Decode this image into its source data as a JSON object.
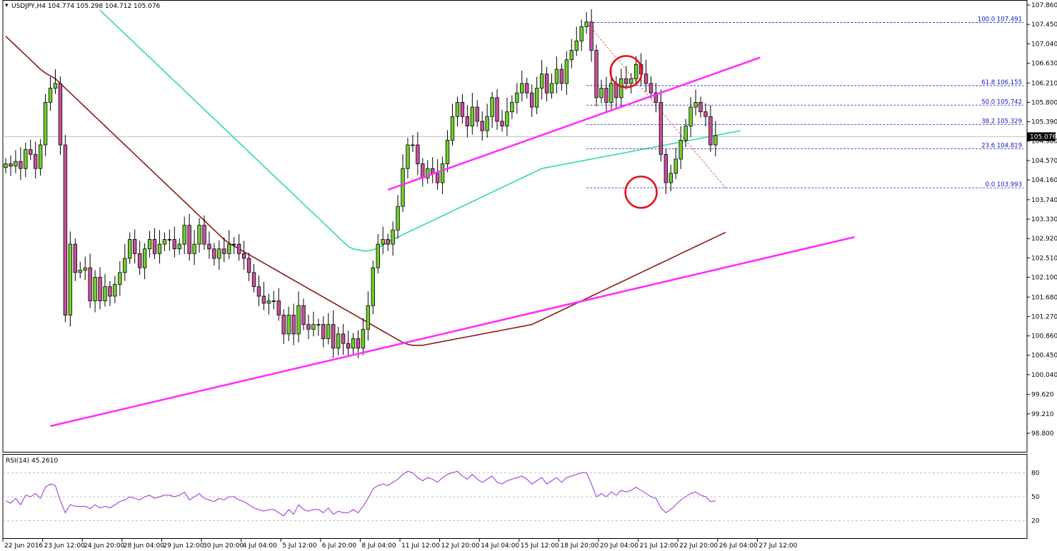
{
  "colors": {
    "background": "#ffffff",
    "frame": "#000000",
    "bull_body": "#6fcf2a",
    "bear_body": "#c8509b",
    "ma_fast": "#30dca0",
    "ma_slow": "#8b1a1a",
    "trendline": "#ff30ff",
    "circle": "#e0141e",
    "fib": "#2020c8",
    "fib_diag": "#e05a5a",
    "rsi": "#9b30d0",
    "current_price_bg": "#000000"
  },
  "chart_data": {
    "type": "candlestick",
    "title": "USDJPY,H4 104.774 105.298 104.712 105.076",
    "symbol": "USDJPY",
    "timeframe": "H4",
    "ohlc_header": {
      "open": 104.774,
      "high": 105.298,
      "low": 104.712,
      "close": 105.076
    },
    "ylim": [
      98.8,
      107.86
    ],
    "y_ticks": [
      107.86,
      107.45,
      107.04,
      106.63,
      106.21,
      105.8,
      105.39,
      104.98,
      104.57,
      104.16,
      103.74,
      103.33,
      102.92,
      102.51,
      102.1,
      101.68,
      101.27,
      100.86,
      100.45,
      100.04,
      99.62,
      99.21,
      98.8
    ],
    "y_tick_labels": [
      "107.860",
      "107.450",
      "107.040",
      "106.630",
      "106.210",
      "105.800",
      "105.390",
      "104.980",
      "104.570",
      "104.160",
      "103.740",
      "103.330",
      "102.920",
      "102.510",
      "102.100",
      "101.680",
      "101.270",
      "100.860",
      "100.450",
      "100.040",
      "99.620",
      "99.210",
      "98.800"
    ],
    "current_price": 105.076,
    "current_price_label": "105.076",
    "x_labels": [
      "22 Jun 2016",
      "23 Jun 12:00",
      "24 Jun 20:00",
      "28 Jun 04:00",
      "29 Jun 12:00",
      "30 Jun 20:00",
      "4 Jul 04:00",
      "5 Jul 12:00",
      "6 Jul 20:00",
      "8 Jul 04:00",
      "11 Jul 12:00",
      "12 Jul 20:00",
      "14 Jul 04:00",
      "15 Jul 12:00",
      "18 Jul 20:00",
      "20 Jul 04:00",
      "21 Jul 12:00",
      "22 Jul 20:00",
      "26 Jul 04:00",
      "27 Jul 12:00"
    ],
    "x_label_index": [
      0,
      8,
      16,
      24,
      32,
      40,
      48,
      56,
      64,
      72,
      80,
      88,
      96,
      104,
      112,
      120,
      128,
      136,
      144,
      152
    ],
    "closes": [
      104.5,
      104.45,
      104.55,
      104.4,
      104.8,
      104.7,
      104.4,
      104.9,
      105.8,
      106.1,
      106.2,
      104.9,
      101.3,
      102.8,
      102.2,
      102.25,
      102.3,
      101.6,
      102.1,
      101.6,
      101.9,
      101.7,
      101.95,
      102.2,
      102.5,
      102.9,
      102.6,
      102.3,
      102.7,
      102.9,
      102.6,
      102.8,
      102.9,
      102.9,
      102.7,
      102.8,
      103.2,
      102.6,
      102.8,
      103.2,
      102.8,
      102.7,
      102.5,
      102.7,
      102.6,
      102.8,
      102.8,
      102.6,
      102.5,
      102.2,
      101.9,
      101.7,
      101.55,
      101.6,
      101.6,
      101.3,
      100.9,
      101.3,
      100.9,
      101.5,
      101.1,
      101.0,
      101.1,
      101.1,
      100.8,
      101.1,
      100.6,
      100.9,
      100.7,
      100.6,
      100.8,
      100.6,
      101.0,
      101.5,
      102.3,
      102.8,
      102.9,
      102.8,
      103.1,
      103.6,
      104.4,
      104.9,
      104.9,
      104.5,
      104.2,
      104.4,
      104.3,
      104.1,
      104.5,
      105.0,
      105.5,
      105.8,
      105.5,
      105.3,
      105.7,
      105.4,
      105.2,
      105.5,
      105.9,
      105.4,
      105.3,
      105.6,
      105.8,
      106.0,
      106.2,
      106.0,
      105.7,
      106.1,
      106.4,
      106.0,
      106.2,
      106.5,
      106.2,
      106.7,
      106.9,
      107.1,
      107.4,
      107.5,
      106.9,
      105.9,
      106.1,
      105.8,
      106.2,
      105.9,
      106.3,
      106.2,
      106.3,
      106.6,
      106.4,
      106.2,
      106.0,
      105.8,
      104.7,
      104.1,
      104.3,
      104.6,
      105.0,
      105.3,
      105.7,
      105.8,
      105.6,
      105.5,
      104.9,
      105.1
    ],
    "series": [
      {
        "name": "Moving Average (fast)",
        "type": "line",
        "values": [
          null,
          null,
          null,
          null,
          null,
          null,
          null,
          null,
          null,
          null,
          null,
          null,
          null,
          null,
          null,
          null,
          null,
          null,
          null,
          107.75,
          107.65,
          107.55,
          107.45,
          107.35,
          107.25,
          107.15,
          107.05,
          106.95,
          106.85,
          106.75,
          106.65,
          106.55,
          106.45,
          106.35,
          106.25,
          106.15,
          106.05,
          105.95,
          105.85,
          105.75,
          105.65,
          105.55,
          105.45,
          105.35,
          105.25,
          105.15,
          105.05,
          104.95,
          104.85,
          104.75,
          104.65,
          104.55,
          104.45,
          104.35,
          104.25,
          104.15,
          104.05,
          103.95,
          103.85,
          103.75,
          103.65,
          103.55,
          103.45,
          103.35,
          103.25,
          103.15,
          103.05,
          102.95,
          102.85,
          102.75,
          102.7,
          102.68,
          102.66,
          102.66,
          102.68,
          102.72,
          102.78,
          102.84,
          102.9,
          102.95,
          103.0,
          103.05,
          103.1,
          103.15,
          103.2,
          103.25,
          103.3,
          103.35,
          103.4,
          103.45,
          103.5,
          103.55,
          103.6,
          103.65,
          103.7,
          103.75,
          103.8,
          103.85,
          103.9,
          103.95,
          104.0,
          104.05,
          104.1,
          104.15,
          104.2,
          104.25,
          104.3,
          104.35,
          104.4,
          104.42,
          104.44,
          104.46,
          104.48,
          104.5,
          104.52,
          104.54,
          104.56,
          104.58,
          104.6,
          104.62,
          104.64,
          104.66,
          104.68,
          104.7,
          104.72,
          104.74,
          104.76,
          104.78,
          104.8,
          104.82,
          104.84,
          104.86,
          104.88,
          104.9,
          104.92,
          104.94,
          104.96,
          104.98,
          105.0,
          105.02,
          105.04,
          105.06,
          105.08,
          105.1,
          105.12,
          105.14,
          105.16,
          105.18,
          105.2
        ]
      },
      {
        "name": "Moving Average (slow)",
        "type": "line",
        "values": [
          107.2,
          107.1,
          107.0,
          106.9,
          106.8,
          106.7,
          106.6,
          106.5,
          106.42,
          106.36,
          106.3,
          106.2,
          106.1,
          106.0,
          105.9,
          105.8,
          105.7,
          105.6,
          105.5,
          105.4,
          105.3,
          105.2,
          105.1,
          105.0,
          104.9,
          104.8,
          104.7,
          104.6,
          104.5,
          104.4,
          104.3,
          104.2,
          104.1,
          104.0,
          103.9,
          103.8,
          103.7,
          103.6,
          103.5,
          103.4,
          103.3,
          103.2,
          103.1,
          103.0,
          102.9,
          102.82,
          102.76,
          102.7,
          102.64,
          102.58,
          102.52,
          102.46,
          102.4,
          102.34,
          102.28,
          102.22,
          102.16,
          102.1,
          102.04,
          101.98,
          101.92,
          101.86,
          101.8,
          101.74,
          101.68,
          101.62,
          101.56,
          101.5,
          101.44,
          101.38,
          101.32,
          101.26,
          101.2,
          101.14,
          101.08,
          101.02,
          100.96,
          100.9,
          100.84,
          100.78,
          100.72,
          100.68,
          100.66,
          100.66,
          100.66,
          100.68,
          100.7,
          100.72,
          100.74,
          100.76,
          100.78,
          100.8,
          100.82,
          100.84,
          100.86,
          100.88,
          100.9,
          100.92,
          100.94,
          100.96,
          100.98,
          101.0,
          101.02,
          101.04,
          101.06,
          101.08,
          101.1,
          101.15,
          101.2,
          101.25,
          101.3,
          101.35,
          101.4,
          101.45,
          101.5,
          101.55,
          101.6,
          101.65,
          101.7,
          101.75,
          101.8,
          101.85,
          101.9,
          101.95,
          102.0,
          102.05,
          102.1,
          102.15,
          102.2,
          102.25,
          102.3,
          102.35,
          102.4,
          102.45,
          102.5,
          102.55,
          102.6,
          102.65,
          102.7,
          102.75,
          102.8,
          102.85,
          102.9,
          102.95,
          103.0,
          103.05
        ]
      }
    ],
    "fibonacci": [
      {
        "label": "100.0",
        "price": 107.491,
        "price_label": "107.491"
      },
      {
        "label": "61.8",
        "price": 106.155,
        "price_label": "106.155"
      },
      {
        "label": "50.0",
        "price": 105.742,
        "price_label": "105.742"
      },
      {
        "label": "38.2",
        "price": 105.329,
        "price_label": "105.329"
      },
      {
        "label": "23.6",
        "price": 104.819,
        "price_label": "104.819"
      },
      {
        "label": "0.0",
        "price": 103.993,
        "price_label": "103.993"
      }
    ],
    "trendlines": [
      {
        "from": {
          "i": 9,
          "y": 98.95
        },
        "to": {
          "i": 171,
          "y": 102.95
        }
      },
      {
        "from": {
          "i": 77,
          "y": 103.95
        },
        "to": {
          "i": 152,
          "y": 106.75
        }
      }
    ],
    "annotations": [
      {
        "type": "circle",
        "at": {
          "i": 125,
          "y": 106.45
        }
      },
      {
        "type": "circle",
        "at": {
          "i": 128,
          "y": 103.9
        }
      }
    ],
    "rsi": {
      "label": "RSI(14) 45.2610",
      "period": 14,
      "last_value": 45.261,
      "ylim": [
        0,
        100
      ],
      "levels": [
        80,
        50,
        20
      ],
      "tick_labels": [
        "80",
        "50",
        "20"
      ],
      "values": [
        45,
        42,
        48,
        40,
        52,
        50,
        54,
        48,
        62,
        66,
        64,
        45,
        30,
        40,
        38,
        38,
        38,
        35,
        40,
        36,
        38,
        36,
        40,
        44,
        46,
        50,
        48,
        46,
        50,
        52,
        48,
        50,
        52,
        52,
        50,
        52,
        56,
        46,
        50,
        54,
        48,
        46,
        44,
        48,
        46,
        50,
        50,
        46,
        44,
        40,
        36,
        34,
        32,
        34,
        34,
        30,
        26,
        34,
        28,
        40,
        34,
        32,
        34,
        34,
        30,
        36,
        28,
        32,
        30,
        30,
        34,
        30,
        38,
        48,
        60,
        64,
        66,
        64,
        68,
        72,
        78,
        82,
        80,
        74,
        70,
        74,
        72,
        68,
        74,
        78,
        80,
        82,
        76,
        72,
        78,
        72,
        68,
        72,
        76,
        68,
        66,
        70,
        72,
        74,
        76,
        72,
        66,
        70,
        74,
        66,
        70,
        74,
        68,
        74,
        76,
        78,
        80,
        80,
        66,
        50,
        54,
        50,
        56,
        52,
        58,
        56,
        58,
        62,
        58,
        54,
        50,
        48,
        36,
        30,
        34,
        40,
        46,
        50,
        54,
        56,
        52,
        50,
        44,
        45
      ]
    }
  }
}
